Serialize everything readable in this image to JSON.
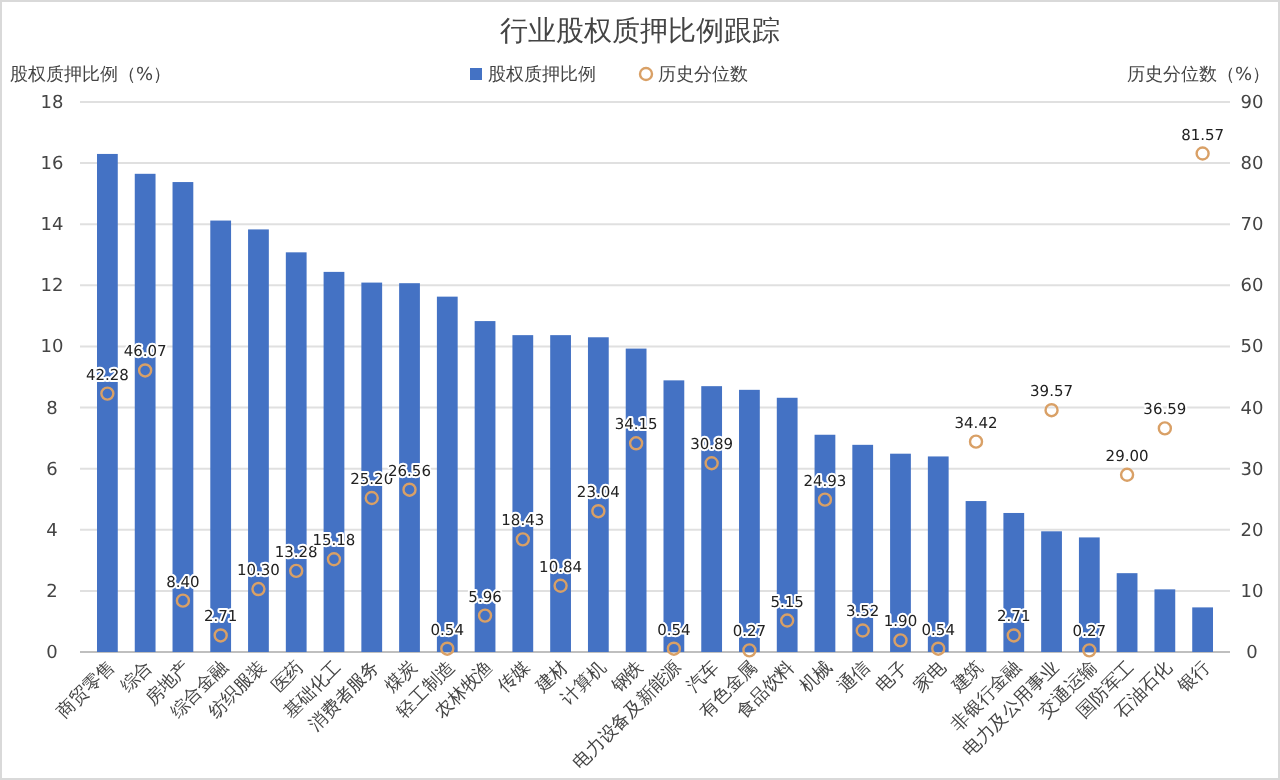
{
  "chart_data": {
    "type": "bar",
    "title": "行业股权质押比例跟踪",
    "ylabel": "股权质押比例（%）",
    "y2label": "历史分位数（%）",
    "categories": [
      "商贸零售",
      "综合",
      "房地产",
      "综合金融",
      "纺织服装",
      "医药",
      "基础化工",
      "消费者服务",
      "煤炭",
      "轻工制造",
      "农林牧渔",
      "传媒",
      "建材",
      "计算机",
      "钢铁",
      "电力设备及新能源",
      "汽车",
      "有色金属",
      "食品饮料",
      "机械",
      "通信",
      "电子",
      "家电",
      "建筑",
      "非银行金融",
      "电力及公用事业",
      "交通运输",
      "国防军工",
      "石油石化",
      "银行"
    ],
    "series": [
      {
        "name": "股权质押比例",
        "color": "#4472c4",
        "values": [
          16.3,
          15.65,
          15.38,
          14.12,
          13.83,
          13.08,
          12.44,
          12.09,
          12.07,
          11.63,
          10.83,
          10.37,
          10.37,
          10.3,
          9.93,
          8.89,
          8.7,
          8.58,
          8.32,
          7.11,
          6.78,
          6.49,
          6.4,
          4.94,
          4.55,
          3.95,
          3.75,
          2.58,
          2.05,
          1.46
        ]
      },
      {
        "name": "历史分位数",
        "type": "scatter",
        "axis": "y2",
        "marker": "circle",
        "color": "#d9a066",
        "values": [
          42.28,
          46.07,
          8.4,
          2.71,
          10.3,
          13.28,
          15.18,
          25.2,
          26.56,
          0.54,
          5.96,
          18.43,
          10.84,
          23.04,
          34.15,
          0.54,
          30.89,
          0.27,
          5.15,
          24.93,
          3.52,
          1.9,
          0.54,
          34.42,
          2.71,
          39.57,
          0.27,
          29.0,
          36.59,
          81.57
        ],
        "value_labels": [
          "42.28",
          "46.07",
          "8.40",
          "2.71",
          "10.30",
          "13.28",
          "15.18",
          "25.20",
          "26.56",
          "0.54",
          "5.96",
          "18.43",
          "10.84",
          "23.04",
          "34.15",
          "0.54",
          "30.89",
          "0.27",
          "5.15",
          "24.93",
          "3.52",
          "1.90",
          "0.54",
          "34.42",
          "2.71",
          "39.57",
          "0.27",
          "29.00",
          "36.59",
          "81.57"
        ]
      }
    ],
    "ylim": [
      0,
      18
    ],
    "yticks": [
      0,
      2,
      4,
      6,
      8,
      10,
      12,
      14,
      16,
      18
    ],
    "y2lim": [
      0,
      90
    ],
    "y2ticks": [
      0,
      10,
      20,
      30,
      40,
      50,
      60,
      70,
      80,
      90
    ],
    "grid": "y",
    "legend": "top"
  }
}
